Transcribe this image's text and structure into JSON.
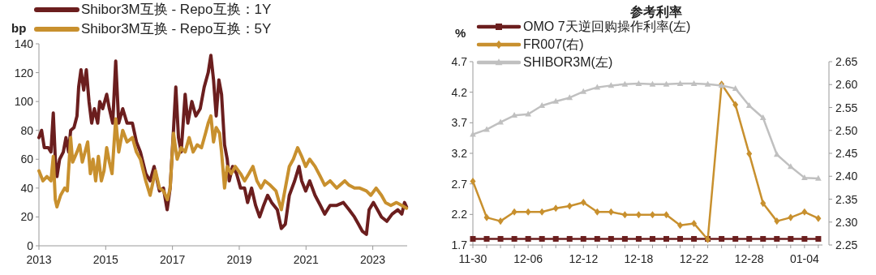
{
  "chart_data": [
    {
      "type": "line",
      "ylabel": "bp",
      "xlim": [
        2013,
        2024.03
      ],
      "xticks": [
        2013,
        2015,
        2017,
        2019,
        2021,
        2023
      ],
      "ylim": [
        0,
        140
      ],
      "yticks": [
        0,
        20,
        40,
        60,
        80,
        100,
        120,
        140
      ],
      "grid": false,
      "legend": "top",
      "line_style": "solid",
      "marker": "none",
      "series": [
        {
          "name": "Shibor3M互换 - Repo互换：1Y",
          "color": "#6b1e1e",
          "x": [
            2013.0,
            2013.08,
            2013.16,
            2013.28,
            2013.36,
            2013.43,
            2013.49,
            2013.54,
            2013.62,
            2013.73,
            2013.81,
            2013.89,
            2013.95,
            2014.05,
            2014.14,
            2014.19,
            2014.26,
            2014.34,
            2014.42,
            2014.5,
            2014.58,
            2014.66,
            2014.76,
            2014.82,
            2014.91,
            2015.03,
            2015.11,
            2015.21,
            2015.3,
            2015.39,
            2015.51,
            2015.64,
            2015.8,
            2015.92,
            2016.04,
            2016.2,
            2016.33,
            2016.45,
            2016.61,
            2016.73,
            2016.84,
            2016.93,
            2017.03,
            2017.1,
            2017.18,
            2017.26,
            2017.38,
            2017.46,
            2017.58,
            2017.7,
            2017.83,
            2017.95,
            2018.07,
            2018.15,
            2018.23,
            2018.31,
            2018.39,
            2018.47,
            2018.56,
            2018.64,
            2018.7,
            2018.8,
            2018.92,
            2019.04,
            2019.16,
            2019.25,
            2019.37,
            2019.49,
            2019.61,
            2019.73,
            2019.85,
            2019.97,
            2020.14,
            2020.26,
            2020.38,
            2020.5,
            2020.66,
            2020.79,
            2020.87,
            2020.99,
            2021.11,
            2021.27,
            2021.43,
            2021.56,
            2021.72,
            2021.92,
            2022.12,
            2022.29,
            2022.45,
            2022.57,
            2022.69,
            2022.81,
            2022.89,
            2023.02,
            2023.14,
            2023.26,
            2023.42,
            2023.58,
            2023.75,
            2023.87,
            2023.95,
            2024.01
          ],
          "values": [
            75,
            80,
            68,
            68,
            65,
            92,
            60,
            48,
            60,
            65,
            75,
            65,
            80,
            82,
            90,
            110,
            122,
            108,
            122,
            100,
            85,
            95,
            85,
            100,
            95,
            105,
            95,
            85,
            128,
            85,
            95,
            85,
            85,
            72,
            65,
            50,
            45,
            55,
            38,
            40,
            25,
            40,
            80,
            110,
            75,
            65,
            105,
            85,
            100,
            90,
            95,
            110,
            120,
            132,
            115,
            90,
            115,
            105,
            70,
            60,
            45,
            55,
            50,
            40,
            40,
            30,
            40,
            28,
            20,
            28,
            35,
            30,
            25,
            12,
            15,
            35,
            45,
            55,
            45,
            38,
            45,
            35,
            28,
            22,
            28,
            28,
            30,
            25,
            20,
            15,
            10,
            8,
            25,
            30,
            25,
            20,
            17,
            22,
            25,
            22,
            30,
            27
          ]
        },
        {
          "name": "Shibor3M互换 - Repo互换：5Y",
          "color": "#c8902e",
          "x": [
            2013.0,
            2013.12,
            2013.24,
            2013.36,
            2013.43,
            2013.49,
            2013.54,
            2013.65,
            2013.77,
            2013.85,
            2013.95,
            2014.01,
            2014.14,
            2014.22,
            2014.3,
            2014.38,
            2014.46,
            2014.54,
            2014.62,
            2014.7,
            2014.78,
            2014.87,
            2014.95,
            2015.03,
            2015.11,
            2015.19,
            2015.3,
            2015.39,
            2015.51,
            2015.64,
            2015.8,
            2015.92,
            2016.04,
            2016.2,
            2016.33,
            2016.49,
            2016.61,
            2016.73,
            2016.85,
            2016.93,
            2017.03,
            2017.14,
            2017.26,
            2017.38,
            2017.5,
            2017.62,
            2017.74,
            2017.87,
            2017.99,
            2018.07,
            2018.15,
            2018.23,
            2018.31,
            2018.41,
            2018.47,
            2018.56,
            2018.64,
            2018.76,
            2018.88,
            2019.04,
            2019.16,
            2019.29,
            2019.41,
            2019.53,
            2019.65,
            2019.77,
            2019.93,
            2020.1,
            2020.26,
            2020.38,
            2020.5,
            2020.62,
            2020.75,
            2020.87,
            2020.99,
            2021.11,
            2021.27,
            2021.43,
            2021.56,
            2021.72,
            2021.92,
            2022.16,
            2022.29,
            2022.45,
            2022.61,
            2022.81,
            2022.94,
            2023.1,
            2023.26,
            2023.38,
            2023.54,
            2023.71,
            2023.87,
            2024.01
          ],
          "values": [
            52,
            45,
            48,
            45,
            62,
            32,
            27,
            35,
            40,
            38,
            75,
            58,
            65,
            70,
            58,
            65,
            72,
            50,
            60,
            45,
            62,
            45,
            52,
            68,
            58,
            50,
            88,
            65,
            80,
            72,
            75,
            65,
            60,
            45,
            35,
            52,
            40,
            38,
            32,
            40,
            78,
            60,
            68,
            65,
            75,
            65,
            70,
            68,
            78,
            85,
            90,
            72,
            82,
            78,
            65,
            40,
            55,
            50,
            55,
            50,
            45,
            50,
            55,
            45,
            40,
            45,
            42,
            38,
            25,
            40,
            55,
            60,
            68,
            62,
            55,
            60,
            55,
            48,
            42,
            45,
            40,
            45,
            42,
            40,
            40,
            38,
            35,
            40,
            35,
            30,
            28,
            30,
            28,
            26
          ]
        }
      ]
    },
    {
      "type": "line",
      "title": "参考利率",
      "ylabel": "%",
      "categories": [
        "11-30",
        null,
        null,
        null,
        "12-06",
        null,
        null,
        null,
        "12-12",
        null,
        null,
        null,
        "12-18",
        null,
        null,
        null,
        "12-22",
        null,
        null,
        null,
        "12-28",
        null,
        null,
        null,
        "01-04",
        null
      ],
      "ylim": [
        1.7,
        4.7
      ],
      "yticks": [
        1.7,
        2.2,
        2.7,
        3.2,
        3.7,
        4.2,
        4.7
      ],
      "y2lim": [
        2.25,
        2.65
      ],
      "y2ticks": [
        2.25,
        {
          "value": 2.3,
          "label": "2.30"
        },
        2.35,
        {
          "value": 2.4,
          "label": "2.40"
        },
        2.45,
        {
          "value": 2.5,
          "label": "2.50"
        },
        2.55,
        {
          "value": 2.6,
          "label": "2.60"
        },
        2.65
      ],
      "grid": false,
      "legend": "top",
      "line_style": "solid",
      "series": [
        {
          "name": "OMO 7天逆回购操作利率(左)",
          "color": "#6b1e1e",
          "marker": "square",
          "values": [
            1.8,
            1.8,
            1.8,
            1.8,
            1.8,
            1.8,
            1.8,
            1.8,
            1.8,
            1.8,
            1.8,
            1.8,
            1.8,
            1.8,
            1.8,
            1.8,
            1.8,
            1.8,
            1.8,
            1.8,
            1.8,
            1.8,
            1.8,
            1.8,
            1.8,
            1.8
          ]
        },
        {
          "name": "FR007(右)",
          "color": "#c8902e",
          "marker": "diamond",
          "axis": "y2",
          "values": [
            2.389,
            2.31,
            2.302,
            2.322,
            2.322,
            2.322,
            2.33,
            2.335,
            2.343,
            2.322,
            2.322,
            2.316,
            2.316,
            2.316,
            2.316,
            2.293,
            2.297,
            2.262,
            2.601,
            2.556,
            2.449,
            2.341,
            2.302,
            2.31,
            2.322,
            2.308
          ]
        },
        {
          "name": "SHIBOR3M(左)",
          "color": "#c0c0c0",
          "marker": "triangle",
          "values": [
            3.51,
            3.59,
            3.71,
            3.82,
            3.84,
            3.98,
            4.05,
            4.11,
            4.21,
            4.28,
            4.31,
            4.33,
            4.34,
            4.33,
            4.33,
            4.34,
            4.34,
            4.33,
            4.31,
            4.26,
            3.98,
            3.78,
            3.18,
            2.98,
            2.8,
            2.79
          ]
        }
      ]
    }
  ]
}
